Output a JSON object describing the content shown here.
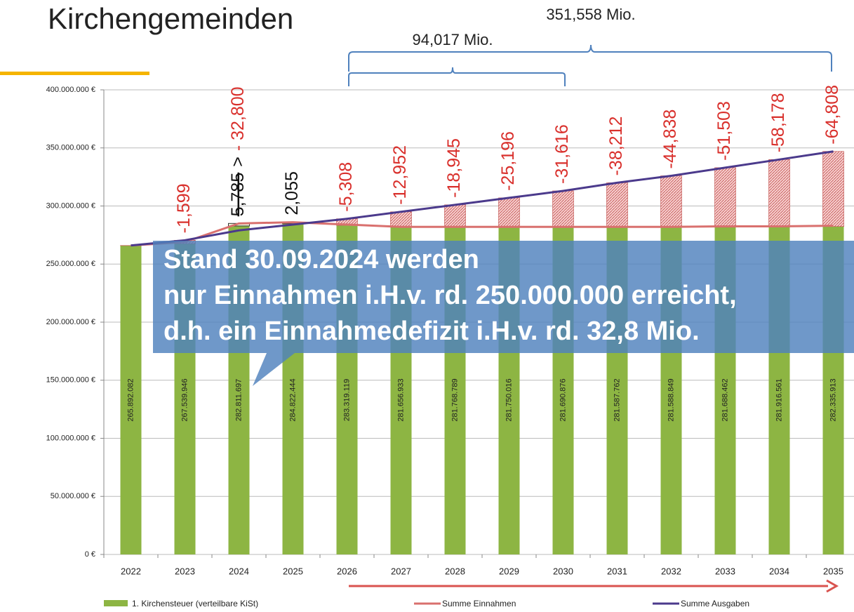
{
  "chart_data": {
    "type": "bar",
    "title": "Kirchengemeinden",
    "categories": [
      "2022",
      "2023",
      "2024",
      "2025",
      "2026",
      "2027",
      "2028",
      "2029",
      "2030",
      "2031",
      "2032",
      "2033",
      "2034",
      "2035"
    ],
    "series": [
      {
        "name": "1. Kirchensteuer (verteilbare KiSt)",
        "type": "bar",
        "color": "#8db543",
        "values": [
          265892082,
          267539946,
          282811697,
          284822444,
          283319119,
          281656933,
          281768789,
          281750016,
          281690876,
          281587762,
          281588849,
          281688462,
          281916561,
          282335913
        ],
        "value_labels": [
          "265.892.082",
          "267.539.946",
          "282.811.697",
          "284.822.444",
          "283.319.119",
          "281.656.933",
          "281.768.789",
          "281.750.016",
          "281.690.876",
          "281.587.762",
          "281.588.849",
          "281.688.462",
          "281.916.561",
          "282.335.913"
        ]
      },
      {
        "name": "Summe Einnahmen",
        "type": "line",
        "color": "#d9706e",
        "values": [
          266000000,
          269000000,
          285000000,
          286000000,
          284000000,
          282000000,
          282000000,
          282000000,
          282000000,
          282000000,
          282000000,
          282500000,
          282500000,
          283000000
        ]
      },
      {
        "name": "Summe Ausgaben",
        "type": "line",
        "color": "#4b3a8c",
        "values": [
          266000000,
          270500000,
          279000000,
          284000000,
          289000000,
          295000000,
          301000000,
          307000000,
          313000000,
          320000000,
          326000000,
          333000000,
          340000000,
          347000000
        ]
      }
    ],
    "deficit_labels": [
      null,
      "-1,599",
      "5,785",
      "2,055",
      "-5,308",
      "-12,952",
      "-18,945",
      "-25,196",
      "-31,616",
      "-38,212",
      "-44,838",
      "-51,503",
      "-58,178",
      "-64,808"
    ],
    "correction_2024": {
      "sign": ">",
      "value": "- 32,800"
    },
    "braces": [
      {
        "label": "94,017 Mio."
      },
      {
        "label": "351,558 Mio."
      }
    ],
    "callout": [
      "Stand 30.09.2024 werden",
      "nur Einnahmen i.H.v. rd. 250.000.000 erreicht,",
      "d.h. ein Einnahmedefizit i.H.v. rd. 32,8 Mio."
    ],
    "ylim": [
      0,
      400000000
    ],
    "yticks": [
      {
        "value": 0,
        "label": "0 €"
      },
      {
        "value": 50000000,
        "label": "50.000.000 €"
      },
      {
        "value": 100000000,
        "label": "100.000.000 €"
      },
      {
        "value": 150000000,
        "label": "150.000.000 €"
      },
      {
        "value": 200000000,
        "label": "200.000.000 €"
      },
      {
        "value": 250000000,
        "label": "250.000.000 €"
      },
      {
        "value": 300000000,
        "label": "300.000.000 €"
      },
      {
        "value": 350000000,
        "label": "350.000.000 €"
      },
      {
        "value": 400000000,
        "label": "400.000.000 €"
      }
    ],
    "grid": true,
    "legend": "bottom"
  }
}
